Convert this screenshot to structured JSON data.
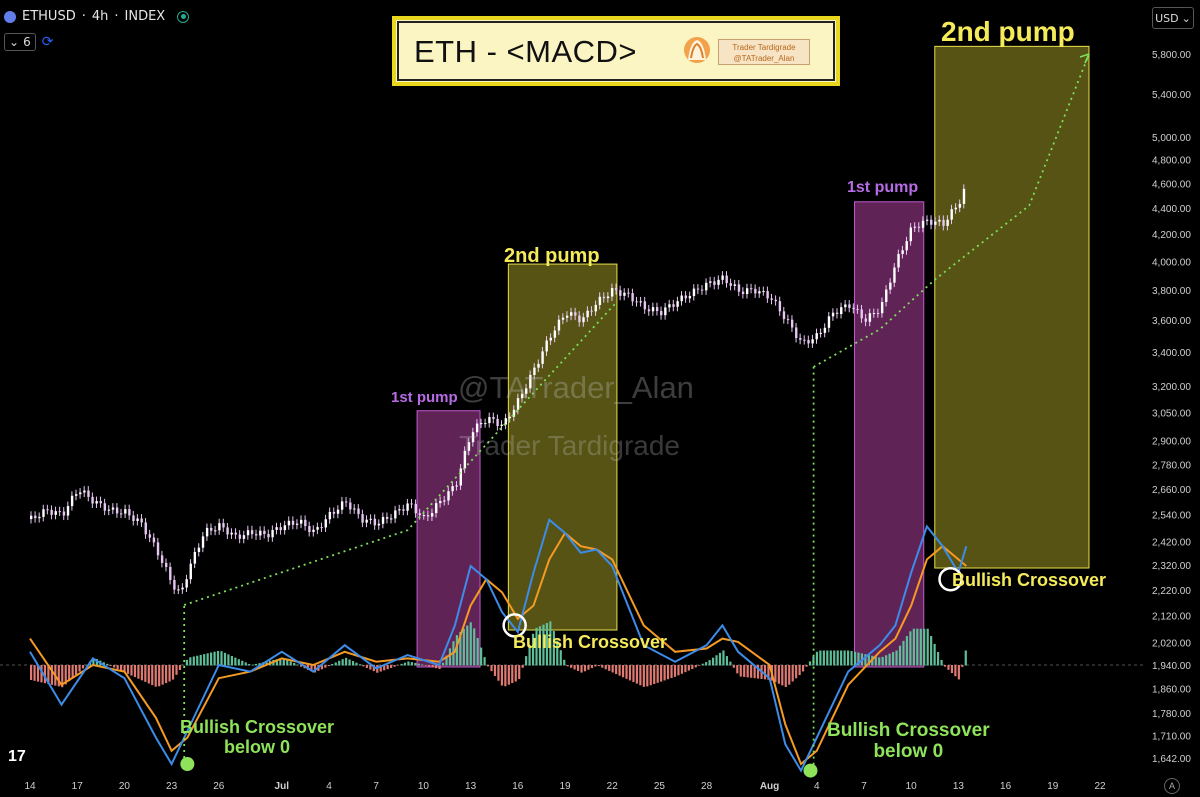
{
  "header": {
    "symbol": "ETHUSD",
    "interval": "4h",
    "exchange": "INDEX",
    "separator": "·",
    "indicator_count": "6",
    "currency": "USD"
  },
  "title": {
    "text": "ETH - <MACD>",
    "card_line1": "Trader Tardigrade",
    "card_line2": "@TATrader_Alan"
  },
  "watermarks": [
    "@TATrader_Alan",
    "Trader Tardigrade"
  ],
  "annotations": {
    "pump1_first": "1st pump",
    "pump1_second": "2nd pump",
    "pump2_first": "1st pump",
    "pump2_second": "2nd pump",
    "crossover_below0_a_line1": "Bullish Crossover",
    "crossover_below0_a_line2": "below 0",
    "crossover_a": "Bullish Crossover",
    "crossover_below0_b_line1": "Bullish Crossover",
    "crossover_below0_b_line2": "below 0",
    "crossover_b": "Bullish Crossover"
  },
  "colors": {
    "price_candles": "#e7c8f2",
    "macd_line": "#3d8ce8",
    "signal_line": "#f59a23",
    "hist_positive": "#5fbf9a",
    "hist_negative": "#e07a72",
    "pump1_zone": "#7a2d6e",
    "pump2_zone": "#6e6a1a",
    "projection": "#7ee05a"
  },
  "chart_data": {
    "type": "line",
    "series": [
      {
        "values": [
          [
            14,
            2520
          ],
          [
            15,
            2560
          ],
          [
            16,
            2540
          ],
          [
            17,
            2660
          ],
          [
            18,
            2600
          ],
          [
            19,
            2560
          ],
          [
            20,
            2550
          ],
          [
            21,
            2500
          ],
          [
            22,
            2380
          ],
          [
            23,
            2240
          ],
          [
            23.5,
            2200
          ],
          [
            24,
            2300
          ],
          [
            25,
            2460
          ],
          [
            26,
            2490
          ],
          [
            27,
            2440
          ],
          [
            28,
            2460
          ],
          [
            29,
            2450
          ],
          [
            30,
            2490
          ],
          [
            31,
            2510
          ],
          [
            32,
            2460
          ],
          [
            33,
            2540
          ],
          [
            34,
            2600
          ],
          [
            35,
            2520
          ],
          [
            36,
            2500
          ],
          [
            37,
            2540
          ],
          [
            38,
            2590
          ],
          [
            39,
            2520
          ],
          [
            40,
            2600
          ],
          [
            41,
            2680
          ],
          [
            42,
            2950
          ],
          [
            43,
            3020
          ],
          [
            44,
            2980
          ],
          [
            45,
            3120
          ],
          [
            46,
            3300
          ],
          [
            47,
            3500
          ],
          [
            48,
            3650
          ],
          [
            49,
            3600
          ],
          [
            50,
            3720
          ],
          [
            51,
            3800
          ],
          [
            52,
            3760
          ],
          [
            53,
            3680
          ],
          [
            54,
            3650
          ],
          [
            55,
            3720
          ],
          [
            56,
            3780
          ],
          [
            57,
            3840
          ],
          [
            58,
            3880
          ],
          [
            59,
            3790
          ],
          [
            60,
            3800
          ],
          [
            61,
            3750
          ],
          [
            62,
            3600
          ],
          [
            63,
            3450
          ],
          [
            64,
            3500
          ],
          [
            65,
            3650
          ],
          [
            66,
            3700
          ],
          [
            67,
            3600
          ],
          [
            68,
            3680
          ],
          [
            69,
            4000
          ],
          [
            70,
            4250
          ],
          [
            71,
            4300
          ],
          [
            72,
            4280
          ],
          [
            73,
            4450
          ],
          [
            73.5,
            4600
          ]
        ]
      },
      {
        "values": [
          [
            14,
            20
          ],
          [
            16,
            -60
          ],
          [
            18,
            10
          ],
          [
            20,
            -20
          ],
          [
            22,
            -110
          ],
          [
            23,
            -150
          ],
          [
            24,
            -100
          ],
          [
            26,
            0
          ],
          [
            28,
            -10
          ],
          [
            30,
            20
          ],
          [
            32,
            -10
          ],
          [
            34,
            30
          ],
          [
            36,
            -5
          ],
          [
            38,
            15
          ],
          [
            40,
            0
          ],
          [
            41,
            60
          ],
          [
            42,
            150
          ],
          [
            43,
            130
          ],
          [
            44,
            80
          ],
          [
            45,
            50
          ],
          [
            46,
            140
          ],
          [
            47,
            220
          ],
          [
            48,
            200
          ],
          [
            49,
            170
          ],
          [
            50,
            175
          ],
          [
            51,
            150
          ],
          [
            53,
            30
          ],
          [
            55,
            5
          ],
          [
            57,
            30
          ],
          [
            58,
            60
          ],
          [
            59,
            20
          ],
          [
            61,
            -20
          ],
          [
            62,
            -120
          ],
          [
            63,
            -160
          ],
          [
            64,
            -110
          ],
          [
            66,
            -10
          ],
          [
            68,
            30
          ],
          [
            69,
            60
          ],
          [
            70,
            140
          ],
          [
            71,
            210
          ],
          [
            72,
            180
          ],
          [
            73,
            140
          ],
          [
            73.5,
            180
          ]
        ]
      },
      {
        "values": [
          [
            14,
            40
          ],
          [
            16,
            -30
          ],
          [
            18,
            0
          ],
          [
            20,
            -10
          ],
          [
            22,
            -80
          ],
          [
            23,
            -130
          ],
          [
            24,
            -110
          ],
          [
            26,
            -20
          ],
          [
            28,
            -10
          ],
          [
            30,
            10
          ],
          [
            32,
            0
          ],
          [
            34,
            20
          ],
          [
            36,
            5
          ],
          [
            38,
            10
          ],
          [
            40,
            5
          ],
          [
            41,
            20
          ],
          [
            42,
            90
          ],
          [
            43,
            130
          ],
          [
            44,
            110
          ],
          [
            45,
            70
          ],
          [
            46,
            90
          ],
          [
            47,
            160
          ],
          [
            48,
            200
          ],
          [
            49,
            180
          ],
          [
            50,
            175
          ],
          [
            51,
            160
          ],
          [
            53,
            60
          ],
          [
            55,
            20
          ],
          [
            57,
            25
          ],
          [
            58,
            40
          ],
          [
            59,
            35
          ],
          [
            61,
            0
          ],
          [
            62,
            -90
          ],
          [
            63,
            -150
          ],
          [
            64,
            -130
          ],
          [
            66,
            -30
          ],
          [
            68,
            20
          ],
          [
            69,
            40
          ],
          [
            70,
            90
          ],
          [
            71,
            160
          ],
          [
            72,
            180
          ],
          [
            73,
            160
          ],
          [
            73.5,
            150
          ]
        ]
      }
    ],
    "x_ticks": [
      {
        "x": 14,
        "label": "14"
      },
      {
        "x": 17,
        "label": "17"
      },
      {
        "x": 20,
        "label": "20"
      },
      {
        "x": 23,
        "label": "23"
      },
      {
        "x": 26,
        "label": "26"
      },
      {
        "x": 30,
        "label": "Jul"
      },
      {
        "x": 33,
        "label": "4"
      },
      {
        "x": 36,
        "label": "7"
      },
      {
        "x": 39,
        "label": "10"
      },
      {
        "x": 42,
        "label": "13"
      },
      {
        "x": 45,
        "label": "16"
      },
      {
        "x": 48,
        "label": "19"
      },
      {
        "x": 51,
        "label": "22"
      },
      {
        "x": 54,
        "label": "25"
      },
      {
        "x": 57,
        "label": "28"
      },
      {
        "x": 61,
        "label": "Aug"
      },
      {
        "x": 64,
        "label": "4"
      },
      {
        "x": 67,
        "label": "7"
      },
      {
        "x": 70,
        "label": "10"
      },
      {
        "x": 73,
        "label": "13"
      },
      {
        "x": 76,
        "label": "16"
      },
      {
        "x": 79,
        "label": "19"
      },
      {
        "x": 82,
        "label": "22"
      }
    ],
    "y_ticks": [
      1642,
      1710,
      1780,
      1860,
      1940,
      2020,
      2120,
      2220,
      2320,
      2420,
      2540,
      2660,
      2780,
      2900,
      3050,
      3200,
      3400,
      3600,
      3800,
      4000,
      4200,
      4400,
      4600,
      4800,
      5000,
      5400,
      5800
    ],
    "y_tick_labels": [
      "1,642.00",
      "1,710.00",
      "1,780.00",
      "1,860.00",
      "1,940.00",
      "2,020.00",
      "2,120.00",
      "2,220.00",
      "2,320.00",
      "2,420.00",
      "2,540.00",
      "2,660.00",
      "2,780.00",
      "2,900.00",
      "3,050.00",
      "3,200.00",
      "3,400.00",
      "3,600.00",
      "3,800.00",
      "4,000.00",
      "4,200.00",
      "4,400.00",
      "4,600.00",
      "4,800.00",
      "5,000.00",
      "5,400.00",
      "5,800.00"
    ],
    "y_scale": "log",
    "last_price_line": 1940,
    "zones": [
      {
        "kind": "pump1",
        "x0": 38.6,
        "x1": 42.6,
        "p_top": 3060,
        "label_key": "pump1_first"
      },
      {
        "kind": "pump2",
        "x0": 44.4,
        "x1": 51.3,
        "p_top": 3980,
        "label_key": "pump1_second"
      },
      {
        "kind": "pump1",
        "x0": 66.4,
        "x1": 70.8,
        "p_top": 4450,
        "label_key": "pump2_first"
      },
      {
        "kind": "pump2",
        "x0": 71.5,
        "x1": 81.3,
        "p_top": 5880,
        "label_key": "pump2_second"
      }
    ],
    "projection_lines": [
      [
        [
          23.8,
          2160
        ],
        [
          38.0,
          2470
        ],
        [
          51.3,
          3720
        ]
      ],
      [
        [
          63.8,
          3310
        ],
        [
          68.0,
          3540
        ],
        [
          71.5,
          3870
        ],
        [
          77.5,
          4420
        ],
        [
          81.3,
          5800
        ]
      ]
    ],
    "signal_circles": [
      {
        "x": 24,
        "macd": -150,
        "style": "dot"
      },
      {
        "x": 44.8,
        "macd": 60,
        "style": "ring"
      },
      {
        "x": 63.6,
        "macd": -160,
        "style": "dot"
      },
      {
        "x": 72.5,
        "macd": 130,
        "style": "ring"
      }
    ]
  }
}
